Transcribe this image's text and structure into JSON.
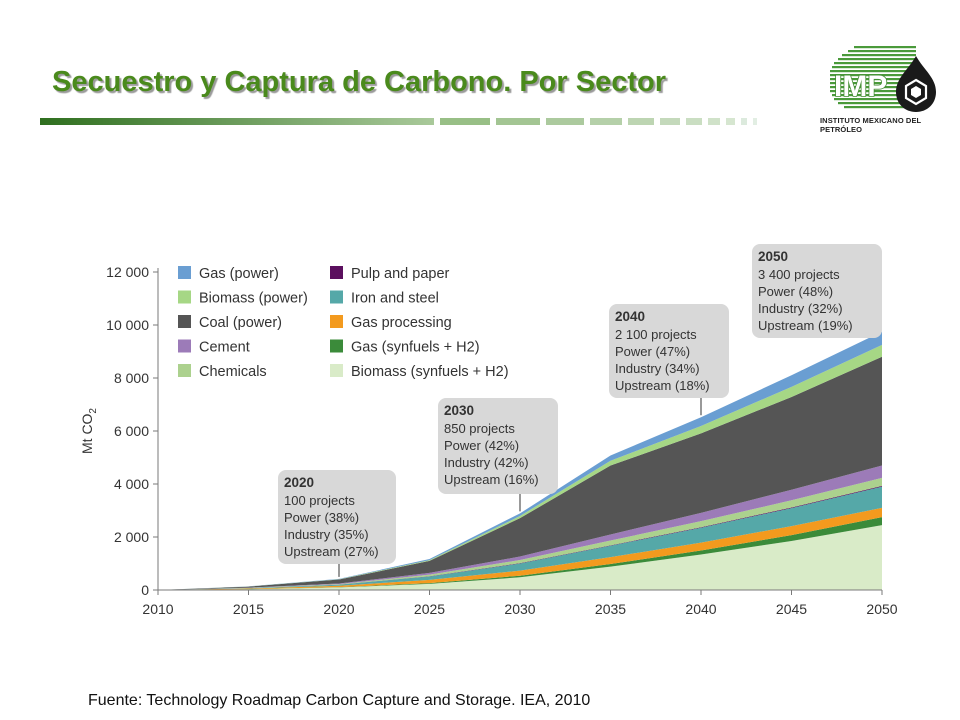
{
  "slide": {
    "title": "Secuestro y Captura de Carbono. Por Sector",
    "logo_mark": "IMP",
    "logo_text": "INSTITUTO MEXICANO DEL PETRÓLEO",
    "source": "Fuente: Technology Roadmap Carbon Capture and Storage. IEA, 2010"
  },
  "colors": {
    "title": "#4a8a1c",
    "rule": "#3a7a26"
  },
  "chart_data": {
    "type": "area",
    "stacked": true,
    "title": "",
    "xlabel": "",
    "ylabel": "Mt CO2",
    "x": [
      2010,
      2015,
      2020,
      2025,
      2030,
      2035,
      2040,
      2045,
      2050
    ],
    "x_tick_labels": [
      "2010",
      "2015",
      "2020",
      "2025",
      "2030",
      "2035",
      "2040",
      "2045",
      "2050"
    ],
    "y_ticks": [
      0,
      2000,
      4000,
      6000,
      8000,
      10000,
      12000
    ],
    "y_tick_labels": [
      "0",
      "2 000",
      "4 000",
      "6 000",
      "8 000",
      "10 000",
      "12 000"
    ],
    "xlim": [
      2010,
      2050
    ],
    "ylim": [
      0,
      12000
    ],
    "grid": false,
    "legend_position": "top-left",
    "legend_columns": [
      [
        "Gas (power)",
        "Biomass (power)",
        "Coal (power)",
        "Cement",
        "Chemicals"
      ],
      [
        "Pulp and paper",
        "Iron and steel",
        "Gas processing",
        "Gas (synfuels + H2)",
        "Biomass (synfuels + H2)"
      ]
    ],
    "series": [
      {
        "name": "Biomass (synfuels + H2)",
        "color": "#d9ebc8",
        "values": [
          0,
          30,
          100,
          230,
          480,
          880,
          1340,
          1850,
          2450
        ]
      },
      {
        "name": "Gas (synfuels + H2)",
        "color": "#3b8b3a",
        "values": [
          0,
          5,
          10,
          30,
          60,
          100,
          150,
          220,
          300
        ]
      },
      {
        "name": "Gas processing",
        "color": "#f39a1e",
        "values": [
          0,
          20,
          50,
          120,
          190,
          260,
          300,
          340,
          350
        ]
      },
      {
        "name": "Iron and steel",
        "color": "#55a8a8",
        "values": [
          0,
          15,
          40,
          130,
          270,
          430,
          560,
          680,
          800
        ]
      },
      {
        "name": "Pulp and paper",
        "color": "#5b0f5e",
        "values": [
          0,
          2,
          4,
          8,
          12,
          16,
          20,
          25,
          30
        ]
      },
      {
        "name": "Chemicals",
        "color": "#acd18e",
        "values": [
          0,
          8,
          20,
          60,
          120,
          180,
          230,
          270,
          300
        ]
      },
      {
        "name": "Cement",
        "color": "#9c7bb8",
        "values": [
          0,
          8,
          20,
          70,
          130,
          230,
          310,
          400,
          470
        ]
      },
      {
        "name": "Coal (power)",
        "color": "#555555",
        "values": [
          0,
          40,
          150,
          450,
          1450,
          2600,
          3000,
          3500,
          4100
        ]
      },
      {
        "name": "Biomass (power)",
        "color": "#a6d785",
        "values": [
          0,
          5,
          10,
          30,
          80,
          180,
          280,
          380,
          450
        ]
      },
      {
        "name": "Gas (power)",
        "color": "#6a9ed2",
        "values": [
          0,
          5,
          15,
          40,
          100,
          200,
          330,
          440,
          500
        ]
      }
    ],
    "annotations": [
      {
        "year": "2020",
        "lines": [
          "100 projects",
          "Power (38%)",
          "Industry (35%)",
          "Upstream (27%)"
        ],
        "anchor_x": 2020
      },
      {
        "year": "2030",
        "lines": [
          "850 projects",
          "Power (42%)",
          "Industry (42%)",
          "Upstream (16%)"
        ],
        "anchor_x": 2030
      },
      {
        "year": "2040",
        "lines": [
          "2 100 projects",
          "Power (47%)",
          "Industry (34%)",
          "Upstream (18%)"
        ],
        "anchor_x": 2040
      },
      {
        "year": "2050",
        "lines": [
          "3 400 projects",
          "Power (48%)",
          "Industry (32%)",
          "Upstream (19%)"
        ],
        "anchor_x": 2050
      }
    ]
  }
}
